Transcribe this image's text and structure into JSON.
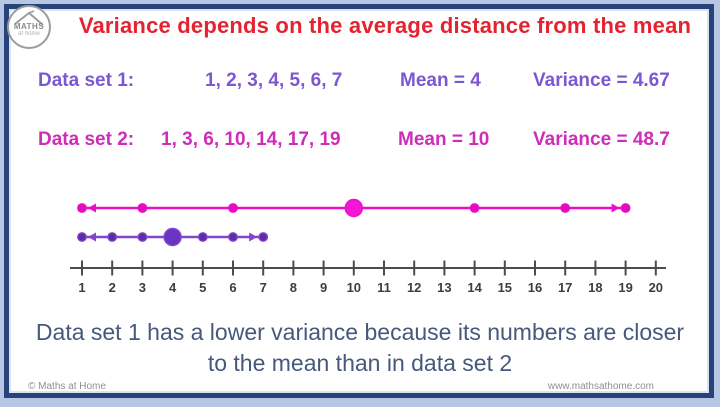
{
  "logo": {
    "brand": "MATHS",
    "brand_sub": "at home"
  },
  "title": "Variance depends on the average distance from the mean",
  "rows": [
    {
      "label": "Data set 1:",
      "values": "1, 2, 3, 4, 5, 6, 7",
      "mean": "Mean = 4",
      "variance": "Variance = 4.67"
    },
    {
      "label": "Data set 2:",
      "values": "1, 3, 6, 10, 14, 17, 19",
      "mean": "Mean = 10",
      "variance": "Variance = 48.7"
    }
  ],
  "chart_data": {
    "type": "number_line",
    "axis": {
      "min": 1,
      "max": 20,
      "tick_step": 1,
      "tick_labels": [
        "1",
        "2",
        "3",
        "4",
        "5",
        "6",
        "7",
        "8",
        "9",
        "10",
        "11",
        "12",
        "13",
        "14",
        "15",
        "16",
        "17",
        "18",
        "19",
        "20"
      ],
      "color": "#4c4c4c",
      "label_color": "#3d3d3d"
    },
    "series": [
      {
        "name": "Data set 2",
        "values": [
          1,
          3,
          6,
          10,
          14,
          17,
          19
        ],
        "mean": 10,
        "line_color": "#ed0cc8",
        "dot_color": "#e20cbe",
        "mean_dot_color": "#f415d6"
      },
      {
        "name": "Data set 1",
        "values": [
          1,
          2,
          3,
          4,
          5,
          6,
          7
        ],
        "mean": 4,
        "line_color": "#8244cb",
        "dot_color": "#5b2da6",
        "mean_dot_color": "#6a34c2"
      }
    ]
  },
  "conclusion": {
    "line1": "Data set 1 has a lower variance because its numbers are closer",
    "line2": "to the mean than in data set 2"
  },
  "footer": {
    "copyright": "© Maths at Home",
    "website": "www.mathsathome.com"
  }
}
